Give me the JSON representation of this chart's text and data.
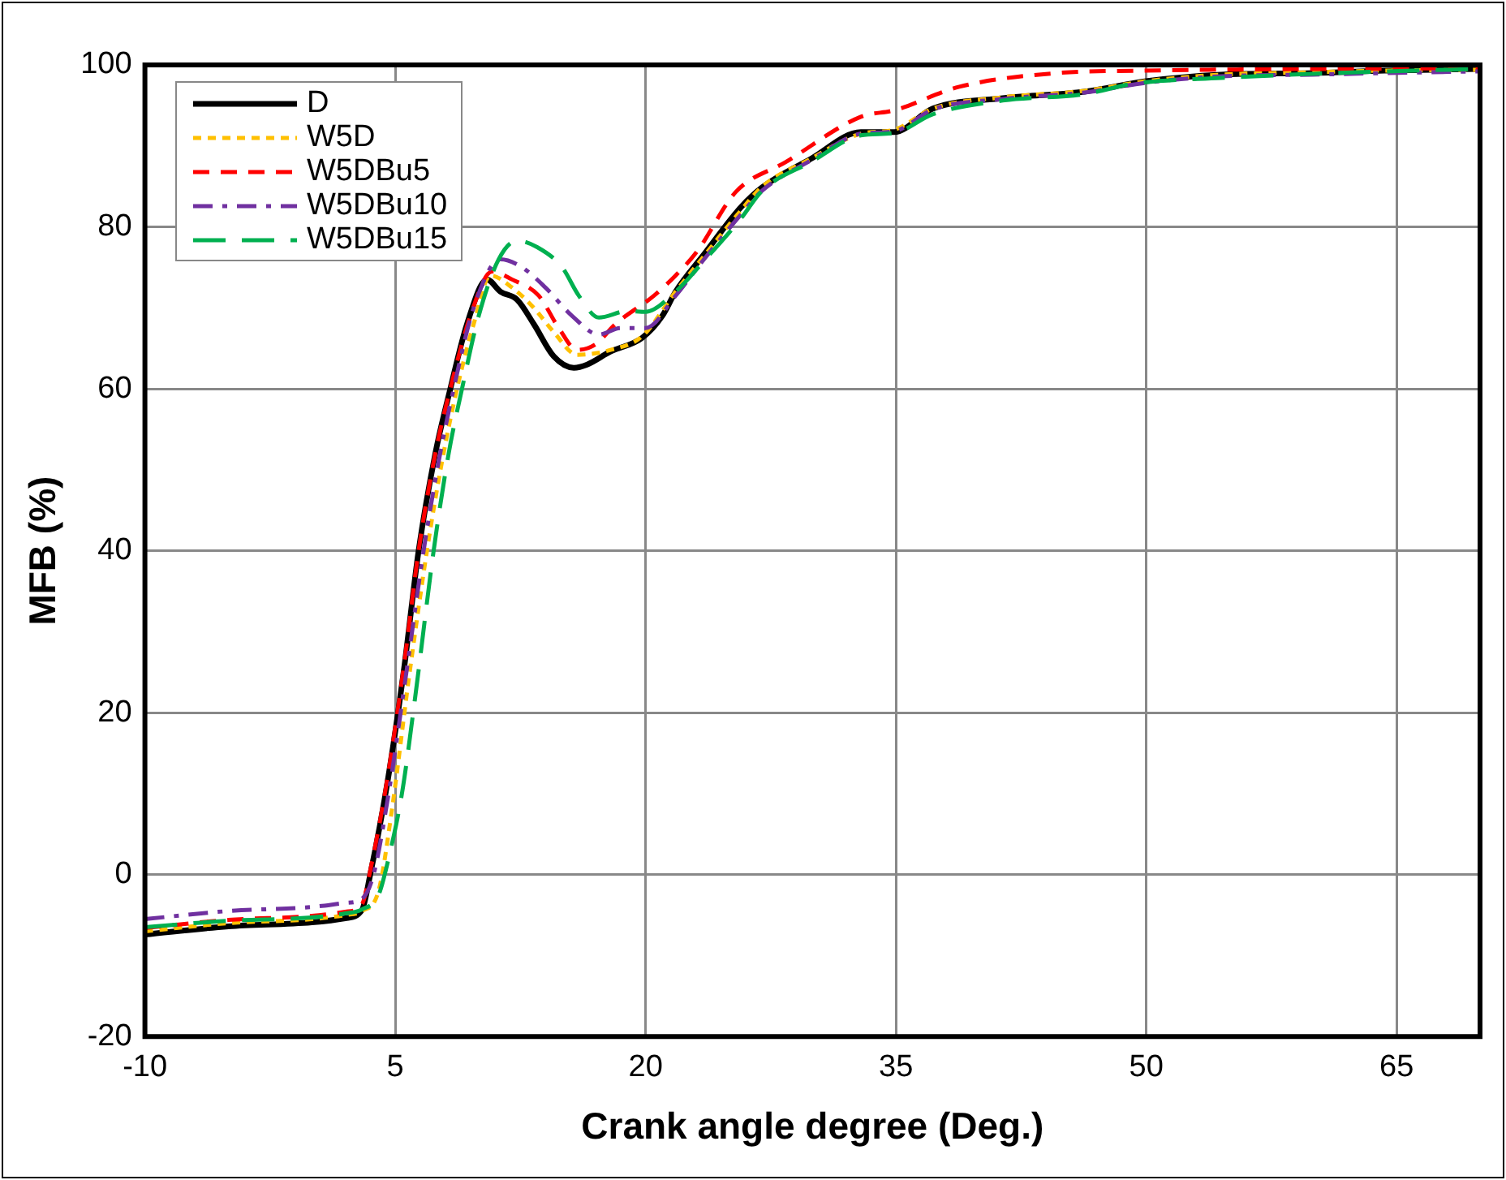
{
  "chart_data": {
    "type": "line",
    "xlabel": "Crank angle degree (Deg.)",
    "ylabel": "MFB (%)",
    "xlim": [
      -10,
      70
    ],
    "xticks": [
      -10,
      5,
      20,
      35,
      50,
      65
    ],
    "ylim": [
      -20,
      100
    ],
    "yticks": [
      -20,
      0,
      20,
      40,
      60,
      80,
      100
    ],
    "grid": true,
    "legend": "top left",
    "marker": "none",
    "series": [
      {
        "name": "D",
        "color": "#000000",
        "line_style": "solid",
        "x": [
          -10,
          -5,
          0,
          2,
          3,
          3.5,
          4.5,
          5.5,
          6.4,
          7.4,
          8.3,
          9.3,
          10.5,
          11.3,
          12.3,
          13.3,
          14.5,
          15.7,
          16.5,
          17.9,
          19.8,
          21,
          21.8,
          23.5,
          25.7,
          27,
          29.9,
          32.9,
          34.9,
          37.2,
          41.4,
          46.3,
          50,
          54.5,
          60,
          64.3,
          70
        ],
        "values": [
          -7.4,
          -6.4,
          -5.9,
          -5.4,
          -4.4,
          0,
          11,
          25,
          40,
          52,
          60,
          68,
          73.5,
          72,
          71,
          68,
          64,
          62.6,
          63,
          64.6,
          66.3,
          69,
          72,
          76.6,
          82.4,
          84.9,
          88.4,
          91.7,
          91.7,
          94.6,
          95.9,
          96.7,
          98,
          98.8,
          99,
          99.3,
          99.5
        ]
      },
      {
        "name": "W5D",
        "color": "#ffc000",
        "line_style": "dotted",
        "x": [
          -10,
          -5,
          0,
          2,
          3,
          4,
          4.8,
          5.8,
          6.9,
          7.8,
          8.7,
          9.7,
          10.7,
          12,
          13.3,
          14.5,
          15.9,
          17.9,
          19.8,
          21.8,
          23.5,
          25.7,
          27,
          29.9,
          32.9,
          34.9,
          37.2,
          41.4,
          46.3,
          50,
          54.5,
          60,
          64.3,
          70
        ],
        "values": [
          -7,
          -6,
          -5.5,
          -5,
          -4.5,
          -2,
          8,
          24,
          40,
          51,
          60,
          68,
          74,
          72.5,
          70,
          67,
          64.2,
          64.8,
          66.5,
          72,
          76.4,
          82,
          85,
          88.4,
          91.5,
          92,
          94.6,
          96,
          96.8,
          98,
          98.8,
          99.1,
          99.3,
          99.4
        ]
      },
      {
        "name": "W5DBu5",
        "color": "#ff0000",
        "line_style": "dashed",
        "x": [
          -10,
          -5,
          0,
          2,
          3,
          3.5,
          4.5,
          5.5,
          6.4,
          7.4,
          8.3,
          9.5,
          10.8,
          12,
          13.6,
          14.8,
          15.9,
          17,
          18.2,
          20.5,
          21.8,
          23.1,
          25.4,
          28.4,
          32.9,
          34.9,
          38.8,
          44.7,
          50,
          60,
          70
        ],
        "values": [
          -6.6,
          -5.6,
          -5.1,
          -4.6,
          -3.7,
          0.5,
          11.5,
          25.5,
          40,
          52,
          60,
          69,
          74.5,
          73.5,
          71.5,
          67.5,
          64.8,
          65.5,
          68,
          71.5,
          74,
          77,
          84.3,
          88,
          93.6,
          94.4,
          97.3,
          99,
          99.3,
          99.5,
          99.6
        ]
      },
      {
        "name": "W5DBu10",
        "color": "#7030a0",
        "line_style": "dashdot",
        "x": [
          -10,
          -5,
          0,
          2,
          3,
          3.7,
          4.6,
          5.6,
          6.7,
          7.6,
          8.5,
          9.7,
          11.3,
          12.6,
          14,
          15.6,
          17.2,
          18.5,
          20,
          21.8,
          23.5,
          25.7,
          27,
          29.9,
          32.9,
          34.9,
          37.2,
          41.4,
          46.3,
          50,
          54.5,
          60,
          64.3,
          70
        ],
        "values": [
          -5.5,
          -4.5,
          -4,
          -3.5,
          -3,
          0,
          10,
          24,
          40,
          51,
          60,
          70,
          76,
          75,
          72.5,
          69,
          66.7,
          67.5,
          67.5,
          71.5,
          76,
          81.5,
          84.5,
          88.2,
          91.5,
          91.8,
          94.5,
          95.8,
          96.6,
          97.8,
          98.6,
          98.8,
          99,
          99.2
        ]
      },
      {
        "name": "W5DBu15",
        "color": "#00b050",
        "line_style": "longdash",
        "x": [
          -10,
          -5,
          0,
          2,
          3,
          4,
          4.6,
          5.4,
          6.2,
          7.3,
          8.2,
          9,
          10,
          11.2,
          12.3,
          13.5,
          15,
          16,
          17.2,
          18.9,
          20,
          21.8,
          23.5,
          25.7,
          27,
          29.9,
          32.9,
          34.9,
          37.2,
          41.4,
          46.3,
          49.3,
          54.5,
          60,
          64.3,
          70
        ],
        "values": [
          -6.5,
          -5.7,
          -5.3,
          -4.8,
          -4.3,
          -2.5,
          2,
          10,
          22,
          40,
          52,
          60,
          69,
          76,
          78.3,
          77.5,
          75,
          71.5,
          68.8,
          69.6,
          69.5,
          72,
          75.8,
          81,
          84.5,
          88,
          91.3,
          91.6,
          93.9,
          95.6,
          96.4,
          97.7,
          98.4,
          98.9,
          99.2,
          99.5
        ]
      }
    ]
  }
}
